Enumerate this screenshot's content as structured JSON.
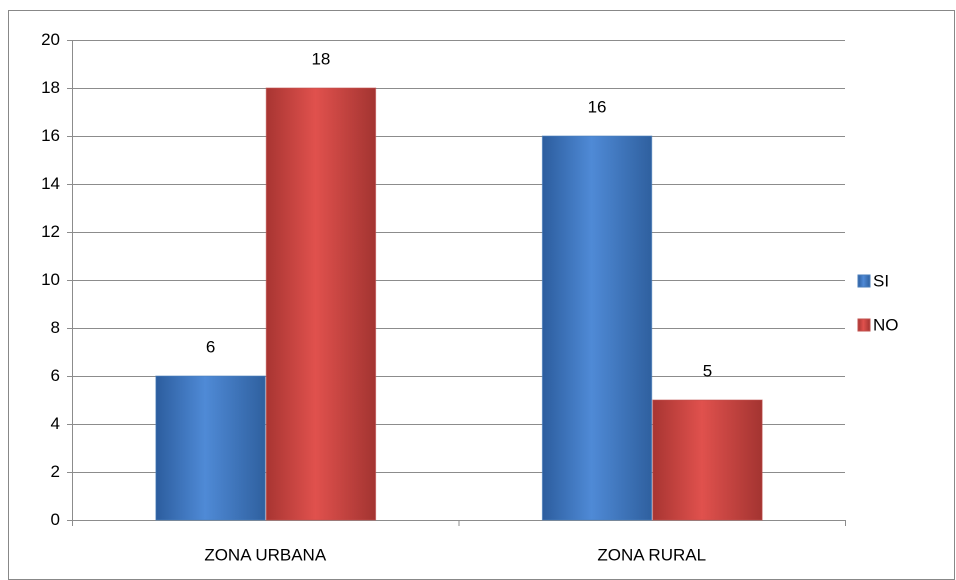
{
  "chart_data": {
    "type": "bar",
    "categories": [
      "ZONA URBANA",
      "ZONA RURAL"
    ],
    "series": [
      {
        "name": "SI",
        "color": "#4a7ebb",
        "values": [
          6,
          16
        ]
      },
      {
        "name": "NO",
        "color": "#c0504d",
        "values": [
          18,
          5
        ]
      }
    ],
    "ylim": [
      0,
      20
    ],
    "yticks": [
      0,
      2,
      4,
      6,
      8,
      10,
      12,
      14,
      16,
      18,
      20
    ],
    "grid": true,
    "legend": "right",
    "data_labels": true
  }
}
